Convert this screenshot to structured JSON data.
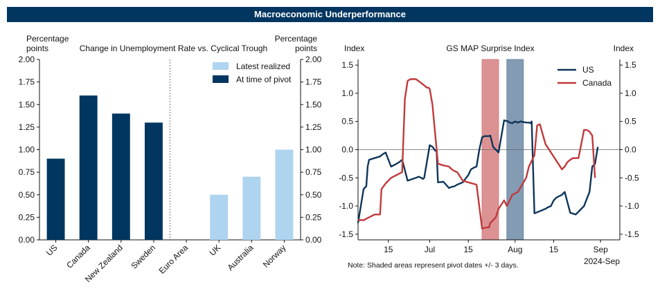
{
  "banner_title": "Macroeconomic Underperformance",
  "note": "Note: Shaded areas represent pivot dates +/- 3 days.",
  "colors": {
    "navy": "#003660",
    "light_blue": "#aed4f0",
    "us_line": "#0d3559",
    "canada_line": "#c0393b",
    "shade_red": "#d67f80",
    "shade_navy": "#6d8aa6"
  },
  "chart_data": [
    {
      "type": "bar",
      "title": "Change in Unemployment Rate vs. Cyclical Trough",
      "ylabel_left": "Percentage\npoints",
      "ylabel_right": "Percentage\npoints",
      "ylim": [
        0,
        2
      ],
      "yticks": [
        "0.00",
        "0.25",
        "0.50",
        "0.75",
        "1.00",
        "1.25",
        "1.50",
        "1.75",
        "2.00"
      ],
      "categories": [
        "US",
        "Canada",
        "New Zealand",
        "Sweden",
        "Euro Area",
        "UK",
        "Australia",
        "Norway"
      ],
      "series": [
        {
          "name": "Latest realized",
          "color": "#aed4f0",
          "values": [
            null,
            null,
            null,
            null,
            null,
            0.5,
            0.7,
            1.0
          ]
        },
        {
          "name": "At time of pivot",
          "color": "#003660",
          "values": [
            0.9,
            1.6,
            1.4,
            1.3,
            null,
            null,
            null,
            null
          ]
        }
      ],
      "separator_after_index": 3.5,
      "legend": "top-right"
    },
    {
      "type": "line",
      "title": "GS MAP Surprise Index",
      "ylabel_left": "Index",
      "ylabel_right": "Index",
      "ylim": [
        -1.6,
        1.6
      ],
      "yticks": [
        "1.5",
        "1.0",
        "0.5",
        "0.0",
        "-0.5",
        "-1.0",
        "-1.5"
      ],
      "ytick_values": [
        1.5,
        1.0,
        0.5,
        0.0,
        -0.5,
        -1.0,
        -1.5
      ],
      "xlim": [
        0,
        95
      ],
      "xticks": [
        {
          "label": "15",
          "x": 11
        },
        {
          "label": "Jul",
          "x": 26
        },
        {
          "label": "15",
          "x": 40
        },
        {
          "label": "Aug",
          "x": 57
        },
        {
          "label": "15",
          "x": 71
        },
        {
          "label": "Sep",
          "x": 88
        }
      ],
      "year_label": "2024-Sep",
      "shaded_ranges": [
        {
          "name": "Canada pivot",
          "color": "#d67f80",
          "x0": 45,
          "x1": 51
        },
        {
          "name": "US pivot",
          "color": "#6d8aa6",
          "x0": 54,
          "x1": 60
        }
      ],
      "legend": "top-right",
      "series": [
        {
          "name": "US",
          "color": "#0d3559",
          "x": [
            0,
            1,
            2,
            3,
            3.5,
            4,
            6,
            8,
            9,
            10,
            12,
            14,
            15,
            16,
            18,
            21,
            22,
            23,
            23.5,
            24,
            26,
            27,
            27.5,
            28,
            28.5,
            29,
            31,
            33,
            34,
            35,
            36,
            38,
            40,
            41,
            42,
            43,
            44,
            45,
            46,
            47,
            47.5,
            48,
            49,
            51,
            53,
            54.5,
            55,
            56,
            57,
            58,
            59,
            61,
            62,
            62.5,
            63,
            64,
            68,
            69,
            70,
            70.5,
            71,
            72,
            74,
            75,
            77,
            79,
            81,
            82,
            84,
            85,
            86,
            86.5,
            87
          ],
          "values": [
            -1.3,
            -1.0,
            -0.7,
            -0.65,
            -0.3,
            -0.18,
            -0.15,
            -0.12,
            -0.08,
            -0.05,
            -0.3,
            -0.25,
            -0.22,
            -0.18,
            -0.55,
            -0.5,
            -0.48,
            -0.5,
            -0.52,
            -0.5,
            0.08,
            0.05,
            0.02,
            -0.02,
            -0.02,
            -0.58,
            -0.57,
            -0.68,
            -0.66,
            -0.65,
            -0.62,
            -0.58,
            -0.45,
            -0.35,
            -0.32,
            -0.3,
            0.0,
            0.22,
            0.24,
            0.24,
            0.24,
            0.25,
            0.05,
            -0.05,
            0.52,
            0.5,
            0.48,
            0.47,
            0.5,
            0.48,
            0.5,
            0.48,
            0.48,
            0.47,
            0.5,
            -1.13,
            -1.05,
            -1.02,
            -1.0,
            -0.95,
            -0.9,
            -0.85,
            -0.8,
            -0.75,
            -1.12,
            -1.15,
            -1.05,
            -1.0,
            -0.75,
            -0.3,
            -0.25,
            -0.1,
            0.05
          ]
        },
        {
          "name": "Canada",
          "color": "#c0393b",
          "x": [
            0,
            2,
            4,
            6,
            7,
            8,
            8.5,
            10,
            12,
            16,
            17,
            18,
            19,
            21,
            23,
            25,
            25.5,
            26,
            27,
            29,
            31,
            33,
            34,
            35,
            36,
            38,
            40,
            43,
            45,
            46.5,
            47.5,
            48,
            49,
            50,
            51,
            53,
            54,
            56,
            58,
            61,
            62,
            64,
            65,
            66,
            68,
            72,
            74,
            75,
            76,
            77,
            78,
            80,
            82,
            83,
            84,
            85,
            86
          ],
          "values": [
            -1.25,
            -1.25,
            -1.2,
            -1.15,
            -1.15,
            -1.15,
            -0.7,
            -0.6,
            -0.5,
            -0.4,
            0.9,
            1.22,
            1.25,
            1.25,
            1.18,
            1.1,
            1.1,
            1.08,
            0.8,
            -0.25,
            -0.28,
            -0.3,
            -0.35,
            -0.38,
            -0.4,
            -0.55,
            -0.58,
            -0.62,
            -1.4,
            -1.38,
            -1.38,
            -1.3,
            -1.25,
            -1.2,
            -1.05,
            -0.9,
            -1.0,
            -0.8,
            -0.75,
            -0.5,
            -0.3,
            -0.1,
            0.43,
            0.45,
            0.1,
            -0.2,
            -0.35,
            -0.3,
            -0.22,
            -0.18,
            -0.15,
            -0.15,
            0.35,
            0.35,
            0.32,
            0.25,
            -0.5
          ]
        }
      ]
    }
  ]
}
